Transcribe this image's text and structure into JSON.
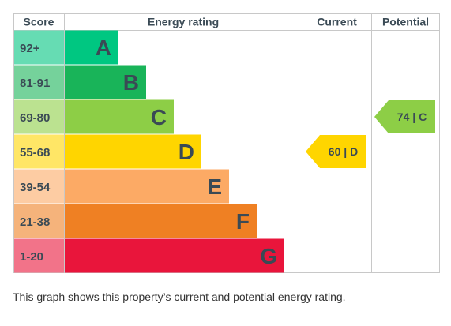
{
  "chart_data": {
    "type": "bar",
    "headers": {
      "score": "Score",
      "rating": "Energy rating",
      "current": "Current",
      "potential": "Potential"
    },
    "bands": [
      {
        "score": "92+",
        "letter": "A",
        "color": "#00c781",
        "score_bg": "#66dcb3",
        "text_color": "#3a4a55"
      },
      {
        "score": "81-91",
        "letter": "B",
        "color": "#19b459",
        "score_bg": "#75d29b",
        "text_color": "#3a4a55"
      },
      {
        "score": "69-80",
        "letter": "C",
        "color": "#8dce46",
        "score_bg": "#bbe290",
        "text_color": "#3a4a55"
      },
      {
        "score": "55-68",
        "letter": "D",
        "color": "#ffd500",
        "score_bg": "#ffe666",
        "text_color": "#3a4a55"
      },
      {
        "score": "39-54",
        "letter": "E",
        "color": "#fcaa65",
        "score_bg": "#fdcca3",
        "text_color": "#3a4a55"
      },
      {
        "score": "21-38",
        "letter": "F",
        "color": "#ef8023",
        "score_bg": "#f5b37b",
        "text_color": "#3a4a55"
      },
      {
        "score": "1-20",
        "letter": "G",
        "color": "#e9153b",
        "score_bg": "#f27389",
        "text_color": "#3a4a55"
      }
    ],
    "current": {
      "value": 60,
      "band": "D",
      "label": "60 | D",
      "color": "#ffd500"
    },
    "potential": {
      "value": 74,
      "band": "C",
      "label": "74 | C",
      "color": "#8dce46"
    }
  },
  "caption": "This graph shows this property’s current and potential energy rating."
}
